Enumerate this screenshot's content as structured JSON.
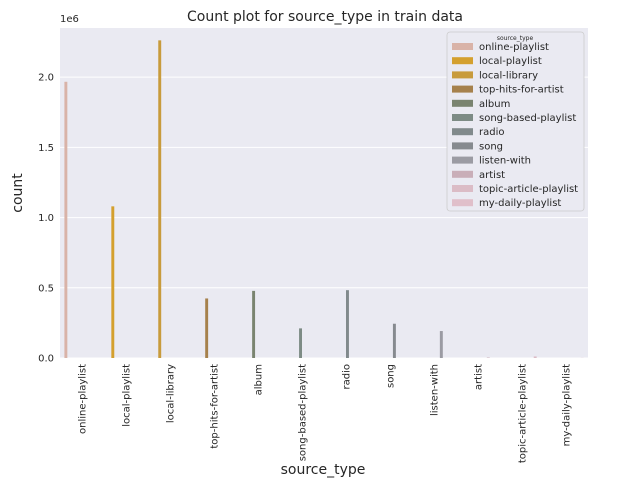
{
  "chart_data": {
    "type": "bar",
    "title": "Count plot for source_type in train data",
    "xlabel": "source_type",
    "ylabel": "count",
    "y_multiplier_label": "1e6",
    "ylim": [
      0,
      2.35
    ],
    "yticks": [
      0.0,
      0.5,
      1.0,
      1.5,
      2.0
    ],
    "ytick_labels": [
      "0.0",
      "0.5",
      "1.0",
      "1.5",
      "2.0"
    ],
    "grid": true,
    "legend_position": "top-right",
    "legend_title": "source_type",
    "categories": [
      "online-playlist",
      "local-playlist",
      "local-library",
      "top-hits-for-artist",
      "album",
      "song-based-playlist",
      "radio",
      "song",
      "listen-with",
      "artist",
      "topic-article-playlist",
      "my-daily-playlist"
    ],
    "series": [
      {
        "name": "online-playlist",
        "color": "#d9b3a8",
        "values": [
          1.967,
          0,
          0,
          0,
          0,
          0,
          0,
          0,
          0,
          0,
          0,
          0
        ]
      },
      {
        "name": "local-playlist",
        "color": "#d4a02e",
        "values": [
          0,
          1.08,
          0,
          0,
          0,
          0,
          0,
          0,
          0,
          0,
          0,
          0
        ]
      },
      {
        "name": "local-library",
        "color": "#c89b3c",
        "values": [
          0,
          0,
          2.262,
          0,
          0,
          0,
          0,
          0,
          0,
          0,
          0,
          0
        ]
      },
      {
        "name": "top-hits-for-artist",
        "color": "#a6814c",
        "values": [
          0,
          0,
          0,
          0.424,
          0,
          0,
          0,
          0,
          0,
          0,
          0,
          0
        ]
      },
      {
        "name": "album",
        "color": "#7a8470",
        "values": [
          0,
          0,
          0,
          0,
          0.478,
          0,
          0,
          0,
          0,
          0,
          0,
          0
        ]
      },
      {
        "name": "song-based-playlist",
        "color": "#7d8b85",
        "values": [
          0,
          0,
          0,
          0,
          0,
          0.211,
          0,
          0,
          0,
          0,
          0,
          0
        ]
      },
      {
        "name": "radio",
        "color": "#818a8c",
        "values": [
          0,
          0,
          0,
          0,
          0,
          0,
          0.483,
          0,
          0,
          0,
          0,
          0
        ]
      },
      {
        "name": "song",
        "color": "#868a8f",
        "values": [
          0,
          0,
          0,
          0,
          0,
          0,
          0,
          0.244,
          0,
          0,
          0,
          0
        ]
      },
      {
        "name": "listen-with",
        "color": "#9b9ba3",
        "values": [
          0,
          0,
          0,
          0,
          0,
          0,
          0,
          0,
          0.192,
          0,
          0,
          0
        ]
      },
      {
        "name": "artist",
        "color": "#c9aeb8",
        "values": [
          0,
          0,
          0,
          0,
          0,
          0,
          0,
          0,
          0,
          0.003,
          0,
          0
        ]
      },
      {
        "name": "topic-article-playlist",
        "color": "#dbbcc6",
        "values": [
          0,
          0,
          0,
          0,
          0,
          0,
          0,
          0,
          0,
          0,
          0.011,
          0
        ]
      },
      {
        "name": "my-daily-playlist",
        "color": "#e0bfca",
        "values": [
          0,
          0,
          0,
          0,
          0,
          0,
          0,
          0,
          0,
          0,
          0,
          0.001
        ]
      }
    ]
  }
}
